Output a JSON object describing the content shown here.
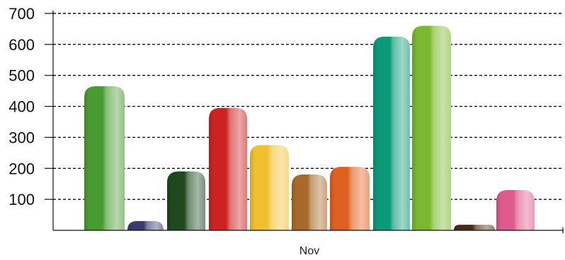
{
  "chart_data": {
    "type": "bar",
    "categories": [
      "Nov"
    ],
    "series": [
      {
        "values": [
          465
        ],
        "color": "#4a9a32"
      },
      {
        "values": [
          30
        ],
        "color": "#3b3b6b"
      },
      {
        "values": [
          190
        ],
        "color": "#1f4a1f"
      },
      {
        "values": [
          395
        ],
        "color": "#cc2222"
      },
      {
        "values": [
          275
        ],
        "color": "#f0c030"
      },
      {
        "values": [
          180
        ],
        "color": "#a86a2a"
      },
      {
        "values": [
          205
        ],
        "color": "#e0601f"
      },
      {
        "values": [
          625
        ],
        "color": "#0a9a78"
      },
      {
        "values": [
          660
        ],
        "color": "#7ab82e"
      },
      {
        "values": [
          18
        ],
        "color": "#4a2a14"
      },
      {
        "values": [
          130
        ],
        "color": "#dd5a8a"
      }
    ],
    "yticks": [
      100,
      200,
      300,
      400,
      500,
      600,
      700
    ],
    "ylim": [
      0,
      700
    ],
    "grid": true,
    "grid_style": "dashed",
    "title": "",
    "xlabel": "",
    "ylabel": ""
  }
}
